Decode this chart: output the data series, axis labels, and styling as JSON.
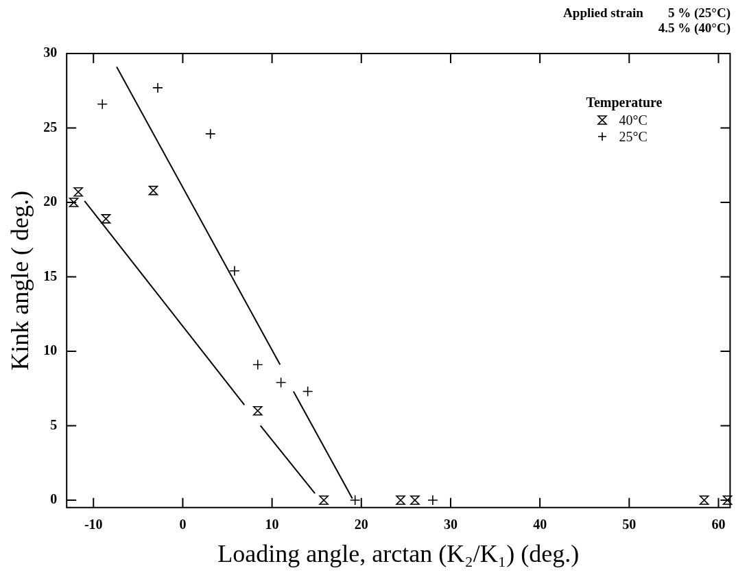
{
  "chart_data": {
    "type": "scatter",
    "xlabel": "Loading angle, arctan (K₂/K₁) (deg.)",
    "ylabel": "Kink angle ( deg.)",
    "legend_title": "Temperature",
    "legend": "top right",
    "grid": false,
    "annotations": [
      "Applied strain",
      "5 % (25°C)",
      "4.5 % (40°C)"
    ],
    "xlim": [
      -13,
      61.3
    ],
    "xticks": [
      -10,
      0,
      10,
      20,
      30,
      40,
      50,
      60
    ],
    "ylim": [
      -0.5,
      30
    ],
    "yticks": [
      0,
      5,
      10,
      15,
      20,
      25,
      30
    ],
    "series": [
      {
        "name": "40°C",
        "color": "#000000",
        "x": [
          -12.2,
          -11.7,
          -8.6,
          -3.3,
          8.4,
          15.8,
          24.4,
          26.0,
          58.4,
          61.0
        ],
        "values": [
          20.0,
          20.7,
          18.9,
          20.8,
          6.0,
          0,
          0,
          0,
          0,
          0
        ]
      },
      {
        "name": "25°C",
        "marker": "cross",
        "color": "#000000",
        "x": [
          -9.0,
          -2.8,
          3.1,
          5.8,
          8.4,
          11.0,
          14.0,
          19.3,
          28.0
        ],
        "values": [
          26.6,
          27.7,
          24.6,
          15.4,
          9.1,
          7.9,
          7.3,
          0,
          0
        ]
      },
      {
        "type": "line",
        "marker": "none",
        "color": "#000000",
        "x": [
          -11.0,
          6.9,
          7.8,
          8.7,
          14.8
        ],
        "values": [
          20.1,
          6.4,
          null,
          5.0,
          0.45
        ]
      },
      {
        "type": "line",
        "marker": "none",
        "color": "#000000",
        "x": [
          -7.4,
          10.9,
          11.6,
          12.4,
          19.0
        ],
        "values": [
          29.1,
          9.1,
          null,
          7.3,
          0.1
        ]
      }
    ]
  }
}
